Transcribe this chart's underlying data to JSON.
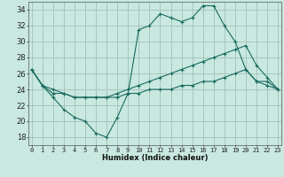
{
  "title": "",
  "xlabel": "Humidex (Indice chaleur)",
  "background_color": "#c8e8e0",
  "grid_color": "#a0c0b8",
  "line_color": "#1a6b60",
  "x_ticks": [
    0,
    1,
    2,
    3,
    4,
    5,
    6,
    7,
    8,
    9,
    10,
    11,
    12,
    13,
    14,
    15,
    16,
    17,
    18,
    19,
    20,
    21,
    22,
    23
  ],
  "y_ticks": [
    18,
    20,
    22,
    24,
    26,
    28,
    30,
    32,
    34
  ],
  "ylim": [
    17.0,
    35.0
  ],
  "xlim": [
    -0.3,
    23.3
  ],
  "series1_y": [
    26.5,
    24.5,
    23.0,
    21.5,
    20.5,
    20.0,
    18.5,
    18.0,
    20.5,
    23.5,
    31.5,
    32.0,
    33.5,
    33.0,
    32.5,
    33.0,
    34.5,
    34.5,
    32.0,
    30.0,
    26.5,
    25.0,
    24.5,
    24.0
  ],
  "series2_y": [
    26.5,
    24.5,
    24.0,
    23.5,
    23.0,
    23.0,
    23.0,
    23.0,
    23.5,
    24.0,
    24.5,
    25.0,
    25.5,
    26.0,
    26.5,
    27.0,
    27.5,
    28.0,
    28.5,
    29.0,
    29.5,
    27.0,
    25.5,
    24.0
  ],
  "series3_y": [
    26.5,
    24.5,
    23.5,
    23.5,
    23.0,
    23.0,
    23.0,
    23.0,
    23.0,
    23.5,
    23.5,
    24.0,
    24.0,
    24.0,
    24.5,
    24.5,
    25.0,
    25.0,
    25.5,
    26.0,
    26.5,
    25.0,
    25.0,
    24.0
  ],
  "marker_size": 3,
  "line_width": 0.8,
  "tick_fontsize": 5,
  "xlabel_fontsize": 6
}
